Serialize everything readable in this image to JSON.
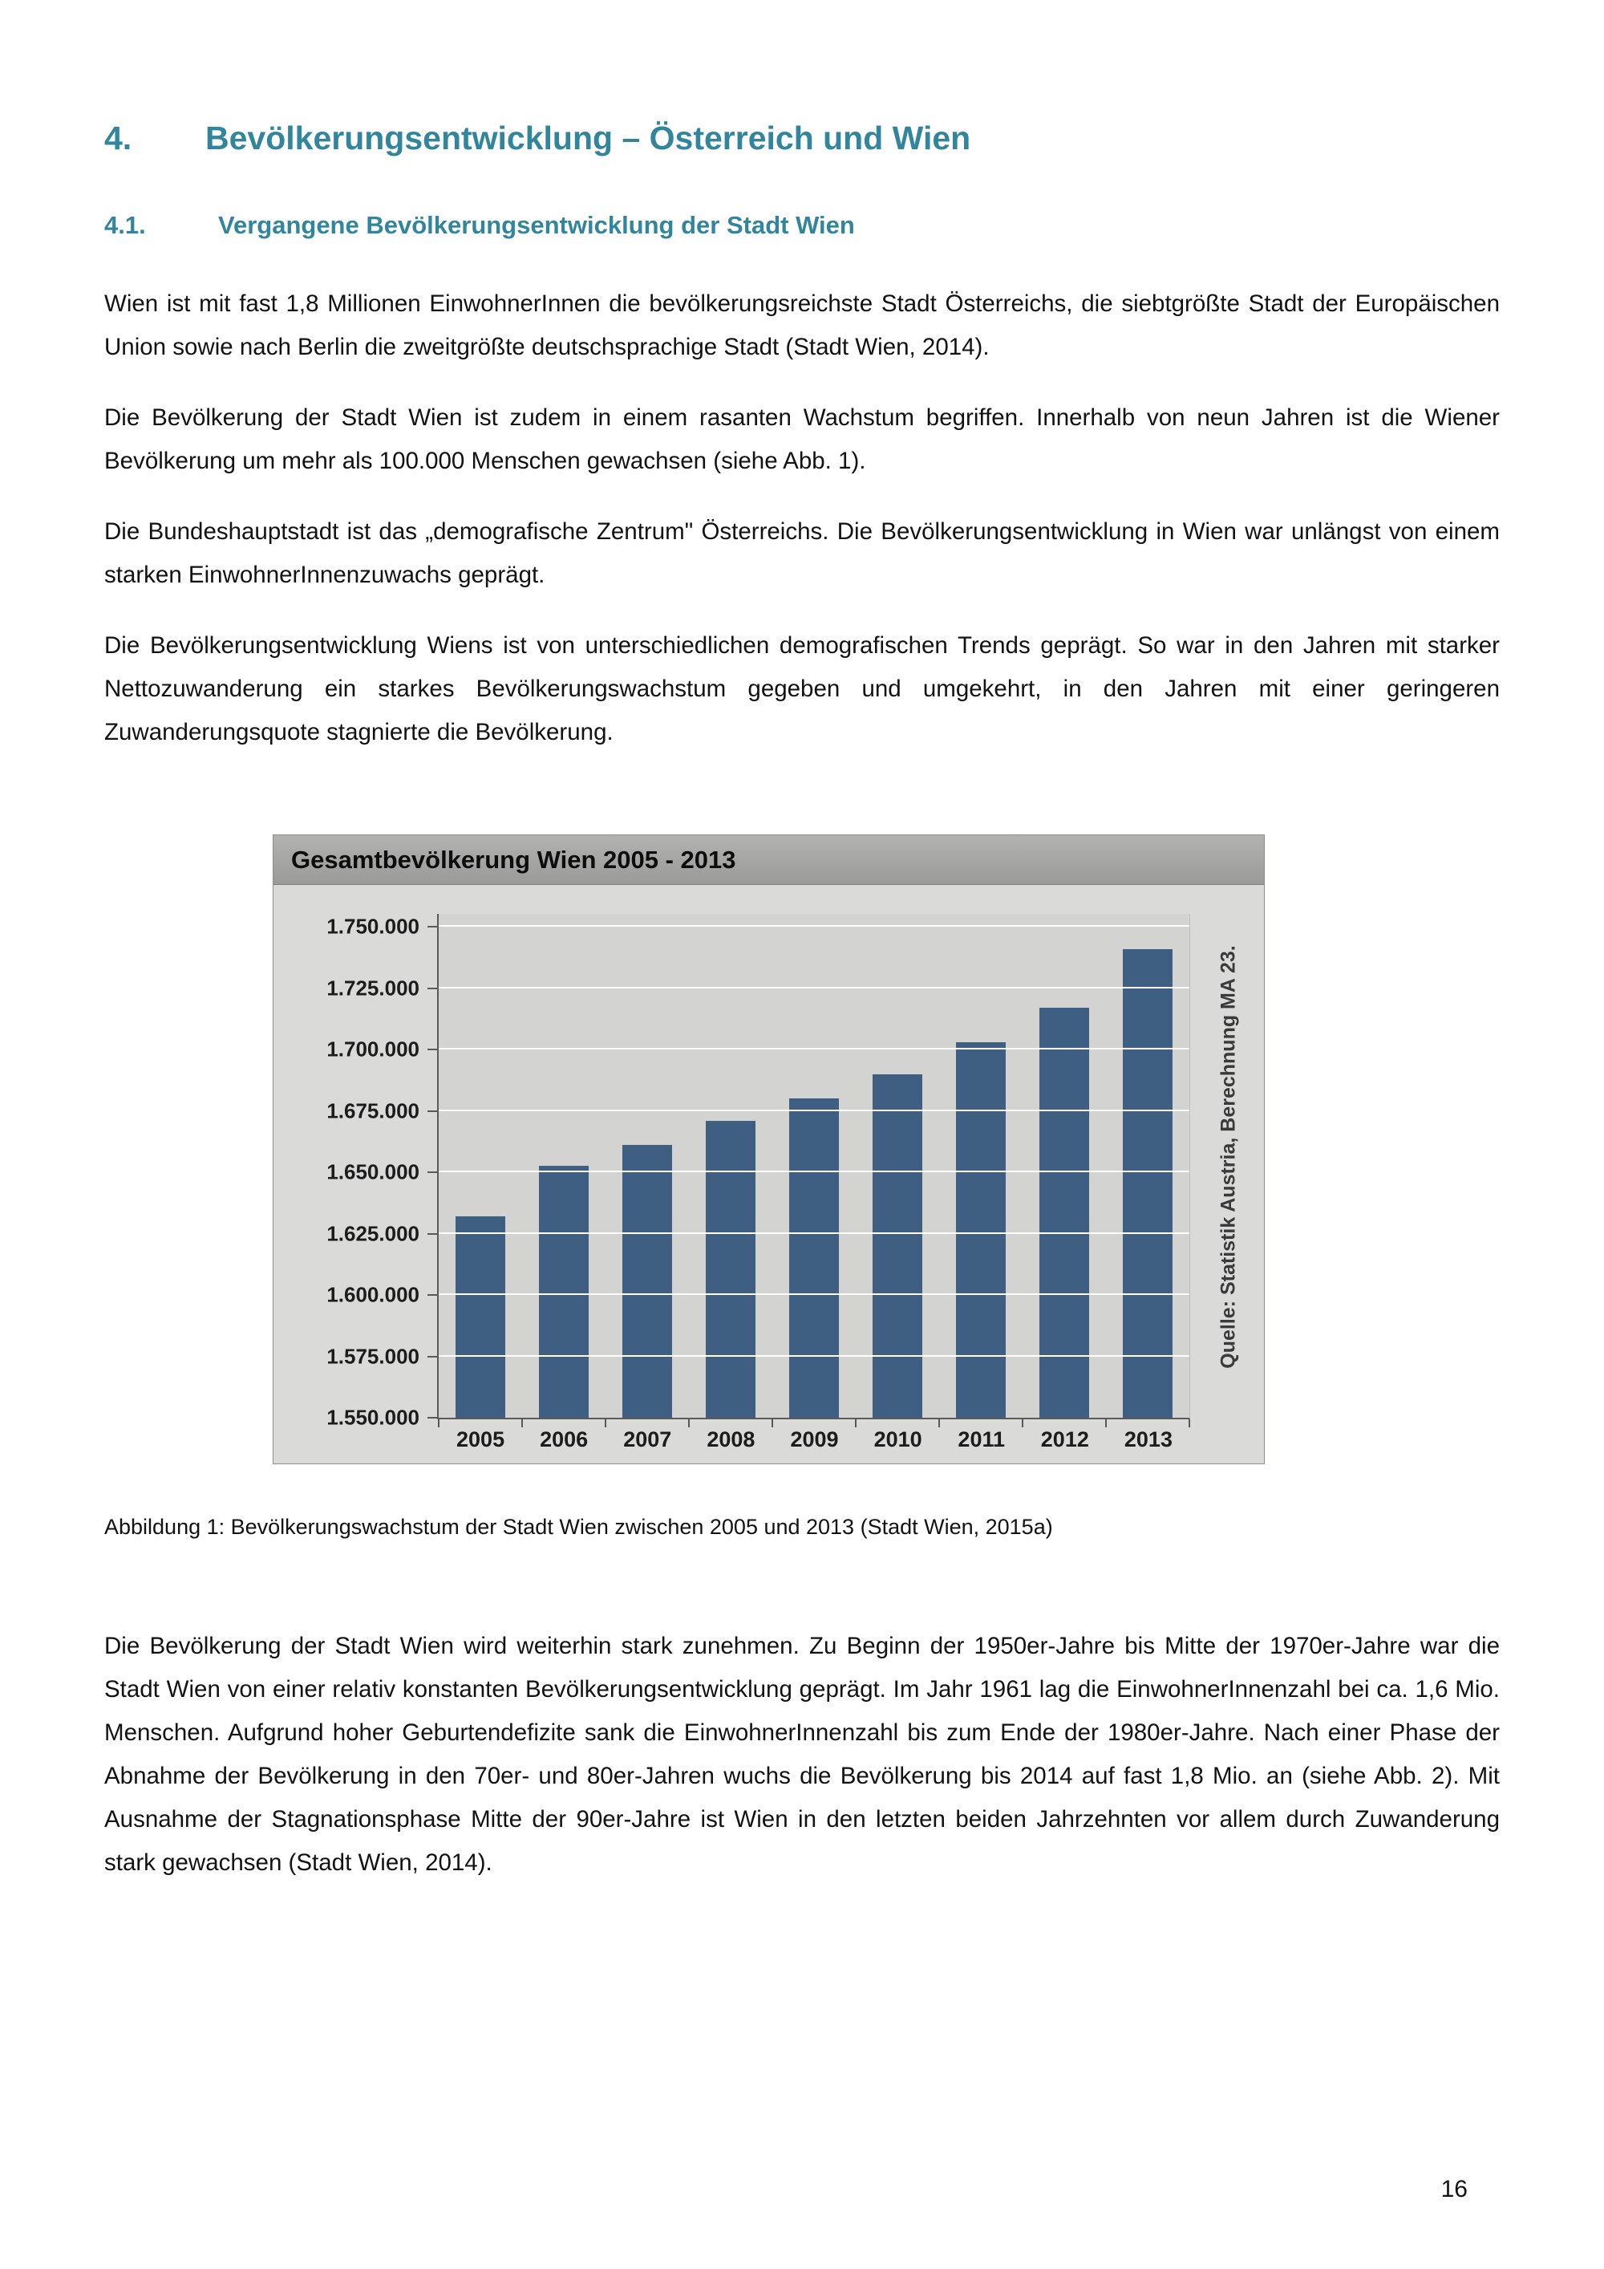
{
  "heading": {
    "number": "4.",
    "label": "Bevölkerungsentwicklung – Österreich und Wien"
  },
  "subheading": {
    "number": "4.1.",
    "label": "Vergangene Bevölkerungsentwicklung der Stadt Wien"
  },
  "paragraphs": {
    "p1": "Wien ist mit fast 1,8 Millionen EinwohnerInnen die bevölkerungsreichste Stadt Österreichs, die siebtgrößte Stadt der Europäischen Union sowie nach Berlin die zweitgrößte deutschsprachige Stadt (Stadt Wien, 2014).",
    "p2": "Die Bevölkerung der Stadt Wien ist zudem in einem rasanten Wachstum begriffen. Innerhalb von neun Jahren ist die Wiener Bevölkerung um mehr als 100.000 Menschen gewachsen (siehe Abb. 1).",
    "p3": "Die Bundeshauptstadt ist das „demografische Zentrum\" Österreichs. Die Bevölkerungsentwicklung in Wien war unlängst von einem starken EinwohnerInnenzuwachs geprägt.",
    "p4": "Die Bevölkerungsentwicklung Wiens ist von unterschiedlichen demografischen Trends geprägt. So war in den Jahren mit starker Nettozuwanderung ein starkes Bevölkerungswachstum gegeben und umgekehrt, in den Jahren mit einer geringeren Zuwanderungsquote stagnierte die Bevölkerung.",
    "closing": "Die Bevölkerung der Stadt Wien wird weiterhin stark zunehmen. Zu Beginn der 1950er-Jahre bis Mitte der 1970er-Jahre war die Stadt Wien von einer relativ konstanten Bevölkerungsentwicklung geprägt. Im Jahr 1961 lag die EinwohnerInnenzahl bei ca. 1,6 Mio. Menschen. Aufgrund hoher Geburtendefizite sank die EinwohnerInnenzahl bis zum Ende der 1980er-Jahre. Nach einer Phase der Abnahme der Bevölkerung in den 70er- und 80er-Jahren wuchs die Bevölkerung bis 2014 auf fast 1,8 Mio. an (siehe Abb. 2). Mit Ausnahme der Stagnationsphase Mitte der 90er-Jahre ist Wien in den letzten beiden Jahrzehnten vor allem durch Zuwanderung stark gewachsen (Stadt Wien, 2014)."
  },
  "figure_caption": "Abbildung 1: Bevölkerungswachstum der Stadt Wien zwischen 2005 und 2013 (Stadt Wien, 2015a)",
  "chart_data": {
    "type": "bar",
    "title": "Gesamtbevölkerung Wien 2005 - 2013",
    "categories": [
      "2005",
      "2006",
      "2007",
      "2008",
      "2009",
      "2010",
      "2011",
      "2012",
      "2013"
    ],
    "values": [
      1632000,
      1652500,
      1661000,
      1671000,
      1680000,
      1690000,
      1703000,
      1717000,
      1741000
    ],
    "ylim": [
      1550000,
      1750000
    ],
    "ytick_step": 25000,
    "ytick_labels": [
      "1.550.000",
      "1.575.000",
      "1.600.000",
      "1.625.000",
      "1.650.000",
      "1.675.000",
      "1.700.000",
      "1.725.000",
      "1.750.000"
    ],
    "xlabel": "",
    "ylabel": "",
    "grid": true,
    "legend_position": "none",
    "source_note": "Quelle: Statistik Austria, Berechnung MA 23.",
    "bar_color": "#3e5f82",
    "plot_bg": "#d3d3d1",
    "header_bg": "#a2a2a0"
  },
  "page": {
    "number": "16"
  },
  "colors": {
    "heading_teal": "#31859c",
    "body_text": "#121212"
  }
}
